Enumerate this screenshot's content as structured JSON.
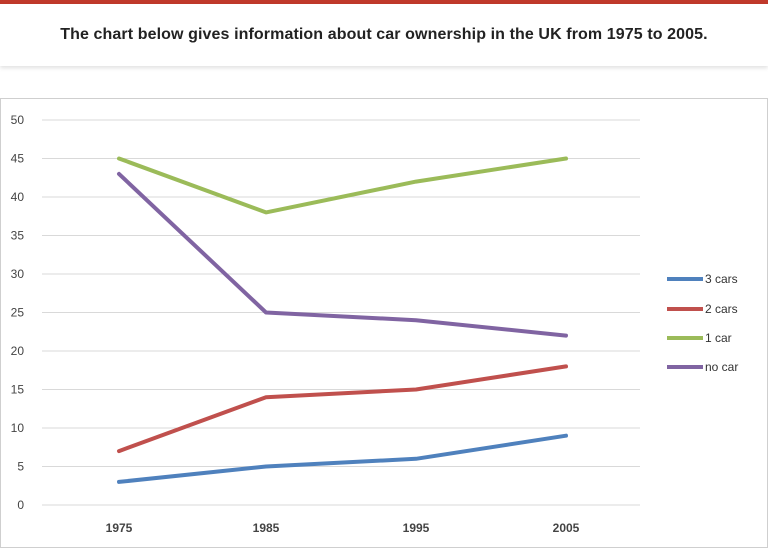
{
  "header": {
    "title": "The chart below gives information about car ownership in the UK from 1975 to 2005.",
    "accent_color": "#c0392b"
  },
  "chart_data": {
    "type": "line",
    "title": "",
    "xlabel": "",
    "ylabel": "",
    "categories": [
      "1975",
      "1985",
      "1995",
      "2005"
    ],
    "ylim": [
      0,
      50
    ],
    "yticks": [
      0,
      5,
      10,
      15,
      20,
      25,
      30,
      35,
      40,
      45,
      50
    ],
    "grid": true,
    "legend_position": "right",
    "series": [
      {
        "name": "3 cars",
        "color": "#4f81bd",
        "values": [
          3,
          5,
          6,
          9
        ]
      },
      {
        "name": "2 cars",
        "color": "#c0504d",
        "values": [
          7,
          14,
          15,
          18
        ]
      },
      {
        "name": "1 car",
        "color": "#9bbb59",
        "values": [
          45,
          38,
          42,
          45
        ]
      },
      {
        "name": "no car",
        "color": "#8064a2",
        "values": [
          43,
          25,
          24,
          22
        ]
      }
    ]
  }
}
